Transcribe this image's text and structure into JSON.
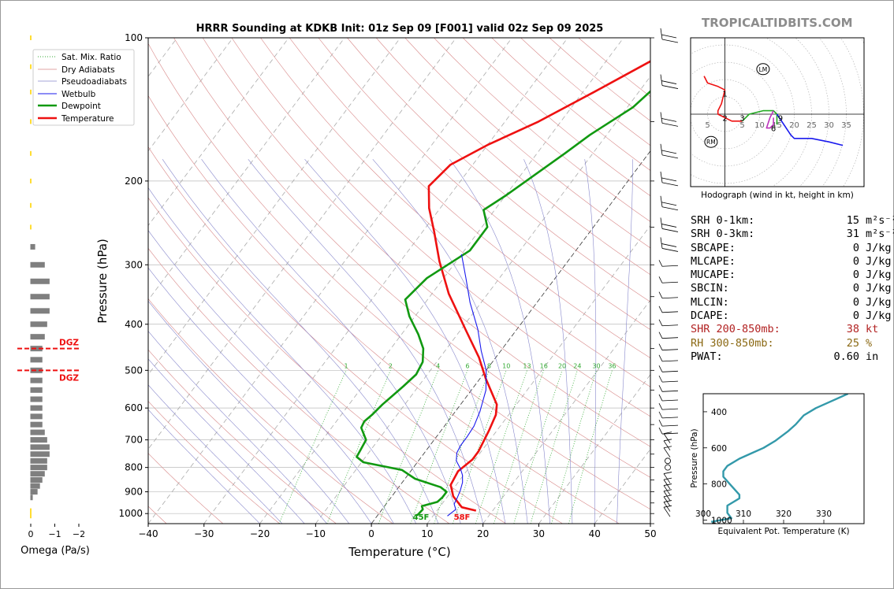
{
  "site": "TROPICALTIDBITS.COM",
  "chart_data": [
    {
      "type": "line",
      "title": "HRRR Sounding at KDKB Init: 01z Sep 09 [F001] valid 02z Sep 09 2025",
      "xlabel": "Temperature (°C)",
      "ylabel": "Pressure (hPa)",
      "xlim": [
        -40,
        50
      ],
      "ylim": [
        1050,
        100
      ],
      "y_scale": "log",
      "xticks": [
        -40,
        -30,
        -20,
        -10,
        0,
        10,
        20,
        30,
        40,
        50
      ],
      "xtick_labels": [
        "−40",
        "−30",
        "−20",
        "−10",
        "0",
        "10",
        "20",
        "30",
        "40",
        "50"
      ],
      "yticks": [
        100,
        200,
        300,
        400,
        500,
        600,
        700,
        800,
        900,
        1000
      ],
      "legend": {
        "placement": "top-left",
        "entries": [
          "Sat. Mix. Ratio",
          "Dry Adiabats",
          "Pseudoadiabats",
          "Wetbulb",
          "Dewpoint",
          "Temperature"
        ]
      },
      "colors": {
        "temperature": "#ee1111",
        "dewpoint": "#119911",
        "wetbulb": "#1a1aee",
        "dry_adiabat": "#d88888",
        "pseudoadiabat": "#8888cc",
        "mixing_ratio": "#33aa33"
      },
      "mixing_ratio_labels": [
        "1",
        "2",
        "4",
        "6",
        "8",
        "10",
        "13",
        "16",
        "20",
        "24",
        "30",
        "36"
      ],
      "surface_labels": {
        "dewpoint": "45F",
        "temperature": "58F"
      },
      "series": [
        {
          "name": "Temperature",
          "points": [
            [
              17,
              986
            ],
            [
              14,
              970
            ],
            [
              11,
              920
            ],
            [
              9,
              870
            ],
            [
              8.5,
              815
            ],
            [
              9.5,
              770
            ],
            [
              9.5,
              740
            ],
            [
              8.6,
              670
            ],
            [
              7.7,
              620
            ],
            [
              6.5,
              590
            ],
            [
              1,
              520
            ],
            [
              -3,
              470
            ],
            [
              -9,
              412
            ],
            [
              -17,
              345
            ],
            [
              -23,
              295
            ],
            [
              -28,
              255
            ],
            [
              -32,
              228
            ],
            [
              -35,
              205
            ],
            [
              -34,
              185
            ],
            [
              -30,
              168
            ],
            [
              -24,
              150
            ],
            [
              -18,
              130
            ],
            [
              -12,
              112
            ],
            [
              -7,
              100
            ]
          ]
        },
        {
          "name": "Dewpoint",
          "points": [
            [
              7.1,
              1010
            ],
            [
              7.3,
              980
            ],
            [
              6.7,
              965
            ],
            [
              8.9,
              945
            ],
            [
              9.2,
              925
            ],
            [
              9.2,
              900
            ],
            [
              7.5,
              880
            ],
            [
              1.8,
              845
            ],
            [
              -1.7,
              810
            ],
            [
              -9.7,
              780
            ],
            [
              -11.6,
              760
            ],
            [
              -11.8,
              740
            ],
            [
              -12.2,
              700
            ],
            [
              -14.7,
              660
            ],
            [
              -15,
              640
            ],
            [
              -14.5,
              620
            ],
            [
              -14,
              590
            ],
            [
              -12.7,
              540
            ],
            [
              -12,
              510
            ],
            [
              -12.5,
              480
            ],
            [
              -14.2,
              450
            ],
            [
              -17,
              420
            ],
            [
              -21,
              385
            ],
            [
              -24,
              355
            ],
            [
              -23,
              320
            ],
            [
              -19,
              280
            ],
            [
              -19,
              250
            ],
            [
              -22,
              230
            ],
            [
              -20,
              215
            ],
            [
              -15,
              175
            ],
            [
              -13,
              160
            ],
            [
              -9,
              140
            ],
            [
              -7,
              120
            ],
            [
              -4,
              100
            ]
          ]
        },
        {
          "name": "Wetbulb",
          "points": [
            [
              12.6,
              1012
            ],
            [
              13.2,
              980
            ],
            [
              12.2,
              955
            ],
            [
              11.9,
              925
            ],
            [
              11.5,
              895
            ],
            [
              10.8,
              860
            ],
            [
              9.8,
              830
            ],
            [
              8.6,
              805
            ],
            [
              6.8,
              775
            ],
            [
              5.8,
              745
            ],
            [
              5.5,
              720
            ],
            [
              5.5,
              690
            ],
            [
              5.3,
              655
            ],
            [
              4.4,
              610
            ],
            [
              2.6,
              550
            ],
            [
              0,
              500
            ],
            [
              -3.5,
              455
            ],
            [
              -7,
              410
            ],
            [
              -12,
              360
            ],
            [
              -16,
              320
            ],
            [
              -20,
              285
            ]
          ]
        }
      ],
      "wind_profile": {
        "placement": "right",
        "type": "barbs"
      }
    },
    {
      "type": "bar",
      "xlabel": "Omega (Pa/s)",
      "xlim": [
        0,
        -2
      ],
      "xticks": [
        0,
        -1,
        -2
      ],
      "xtick_labels": [
        "0",
        "−1",
        "−2"
      ],
      "dgz_label": "DGZ",
      "dgz_bounds": [
        450,
        500
      ],
      "colors": {
        "ascent": "#ffdd33",
        "descent": "#7f7f7f",
        "dgz": "#ee1111"
      },
      "levels": [
        100,
        115,
        130,
        150,
        175,
        200,
        225,
        250,
        275,
        300,
        325,
        350,
        375,
        400,
        425,
        450,
        475,
        500,
        525,
        550,
        575,
        600,
        625,
        650,
        675,
        700,
        725,
        750,
        775,
        800,
        825,
        850,
        875,
        900,
        925,
        950,
        975,
        1000
      ],
      "omega": [
        0,
        0,
        0,
        0,
        0,
        0,
        0,
        0,
        0.2,
        0.6,
        0.8,
        0.8,
        0.8,
        0.7,
        0.6,
        0.5,
        0.5,
        0.5,
        0.5,
        0.5,
        0.5,
        0.5,
        0.5,
        0.5,
        0.6,
        0.7,
        0.8,
        0.8,
        0.7,
        0.7,
        0.6,
        0.5,
        0.4,
        0.3,
        0.1,
        0,
        0,
        0
      ]
    },
    {
      "type": "line",
      "title": "Hodograph (wind in kt, height in km)",
      "xticks": [
        5,
        10,
        15,
        20,
        25,
        30,
        35
      ],
      "left_tick": "5",
      "markers": {
        "lm": "LM",
        "rm": "RM"
      },
      "height_labels": [
        {
          "label": "1",
          "u": 0,
          "v": 6
        },
        {
          "label": "2",
          "u": 0,
          "v": -1
        },
        {
          "label": "3",
          "u": 5,
          "v": -1
        },
        {
          "label": "9",
          "u": 16,
          "v": -1
        },
        {
          "label": "6",
          "u": 14,
          "v": -4
        }
      ],
      "bunkers": {
        "lm": [
          11,
          13
        ],
        "rm": [
          -4,
          -8
        ]
      },
      "series": [
        {
          "name": "0-3 km",
          "color": "#ee1111",
          "points": [
            [
              -6,
              11
            ],
            [
              -5,
              9
            ],
            [
              -2,
              8
            ],
            [
              0,
              7
            ],
            [
              -1,
              3
            ],
            [
              -2,
              1
            ],
            [
              -2,
              0
            ],
            [
              2,
              -2
            ],
            [
              5,
              -2
            ]
          ]
        },
        {
          "name": "3-6 km",
          "color": "#22aa22",
          "points": [
            [
              5,
              -2
            ],
            [
              7,
              0
            ],
            [
              11,
              1
            ],
            [
              14,
              1
            ],
            [
              15,
              0
            ],
            [
              15,
              -3
            ]
          ]
        },
        {
          "name": "6-9 km",
          "color": "#bb33bb",
          "points": [
            [
              14,
              1
            ],
            [
              13,
              -1
            ],
            [
              12,
              -4
            ],
            [
              13,
              -4
            ],
            [
              14,
              -3
            ],
            [
              14,
              -1
            ]
          ]
        },
        {
          "name": "9-12 km",
          "color": "#1a1aee",
          "points": [
            [
              15,
              0
            ],
            [
              17,
              -3
            ],
            [
              19,
              -6
            ],
            [
              20,
              -7
            ],
            [
              25,
              -7
            ],
            [
              30,
              -8
            ],
            [
              34,
              -9
            ]
          ]
        }
      ]
    },
    {
      "type": "line",
      "xlabel": "Equivalent Pot. Temperature (K)",
      "ylabel": "Pressure (hPa)",
      "xlim": [
        300,
        340
      ],
      "ylim": [
        1020,
        300
      ],
      "xticks": [
        300,
        310,
        320,
        330
      ],
      "yticks": [
        400,
        600,
        800,
        1000
      ],
      "color": "#3399aa",
      "series": [
        {
          "name": "theta-e",
          "points": [
            [
              336,
              300
            ],
            [
              332,
              340
            ],
            [
              328,
              380
            ],
            [
              325,
              420
            ],
            [
              323,
              470
            ],
            [
              321,
              510
            ],
            [
              318,
              560
            ],
            [
              315,
              600
            ],
            [
              312,
              630
            ],
            [
              309,
              660
            ],
            [
              306,
              700
            ],
            [
              305,
              730
            ],
            [
              305,
              760
            ],
            [
              307,
              810
            ],
            [
              309,
              860
            ],
            [
              309,
              880
            ],
            [
              306,
              920
            ],
            [
              306,
              960
            ],
            [
              307,
              990
            ],
            [
              302,
              1010
            ]
          ]
        }
      ]
    }
  ],
  "parameters": [
    {
      "label": "SRH 0-1km:",
      "value": "15",
      "unit": "m²s⁻²",
      "color": "#000000"
    },
    {
      "label": "SRH 0-3km:",
      "value": "31",
      "unit": "m²s⁻²",
      "color": "#000000"
    },
    {
      "label": "SBCAPE:",
      "value": "0",
      "unit": "J/kg",
      "color": "#000000"
    },
    {
      "label": "MLCAPE:",
      "value": "0",
      "unit": "J/kg",
      "color": "#000000"
    },
    {
      "label": "MUCAPE:",
      "value": "0",
      "unit": "J/kg",
      "color": "#000000"
    },
    {
      "label": "SBCIN:",
      "value": "0",
      "unit": "J/kg",
      "color": "#000000"
    },
    {
      "label": "MLCIN:",
      "value": "0",
      "unit": "J/kg",
      "color": "#000000"
    },
    {
      "label": "DCAPE:",
      "value": "0",
      "unit": "J/kg",
      "color": "#000000"
    },
    {
      "label": "SHR 200-850mb:",
      "value": "38",
      "unit": "kt",
      "color": "#b22222"
    },
    {
      "label": "RH 300-850mb:",
      "value": "25",
      "unit": "%",
      "color": "#8b6914"
    },
    {
      "label": "PWAT:",
      "value": "0.60",
      "unit": "in",
      "color": "#000000"
    }
  ]
}
